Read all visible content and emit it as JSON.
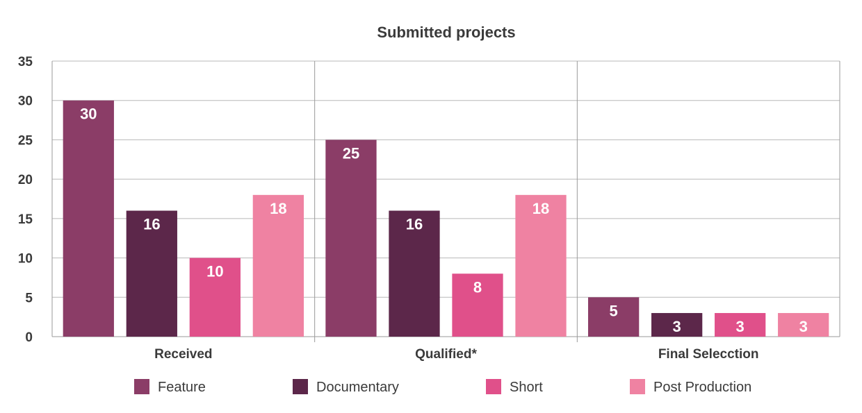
{
  "chart_data": {
    "type": "bar",
    "title": "Submitted projects",
    "xlabel": "",
    "ylabel": "",
    "categories": [
      "Received",
      "Qualified*",
      "Final Selecction"
    ],
    "series": [
      {
        "name": "Feature",
        "values": [
          30,
          25,
          5
        ],
        "color": "#8b3d67"
      },
      {
        "name": "Documentary",
        "values": [
          16,
          16,
          3
        ],
        "color": "#5c274a"
      },
      {
        "name": "Short",
        "values": [
          10,
          8,
          3
        ],
        "color": "#e0508a"
      },
      {
        "name": "Post Production",
        "values": [
          18,
          18,
          3
        ],
        "color": "#ef82a2"
      }
    ],
    "ylim": [
      0,
      35
    ],
    "yticks": [
      0,
      5,
      10,
      15,
      20,
      25,
      30,
      35
    ],
    "grid": true,
    "legend": "bottom",
    "data_labels": true
  }
}
